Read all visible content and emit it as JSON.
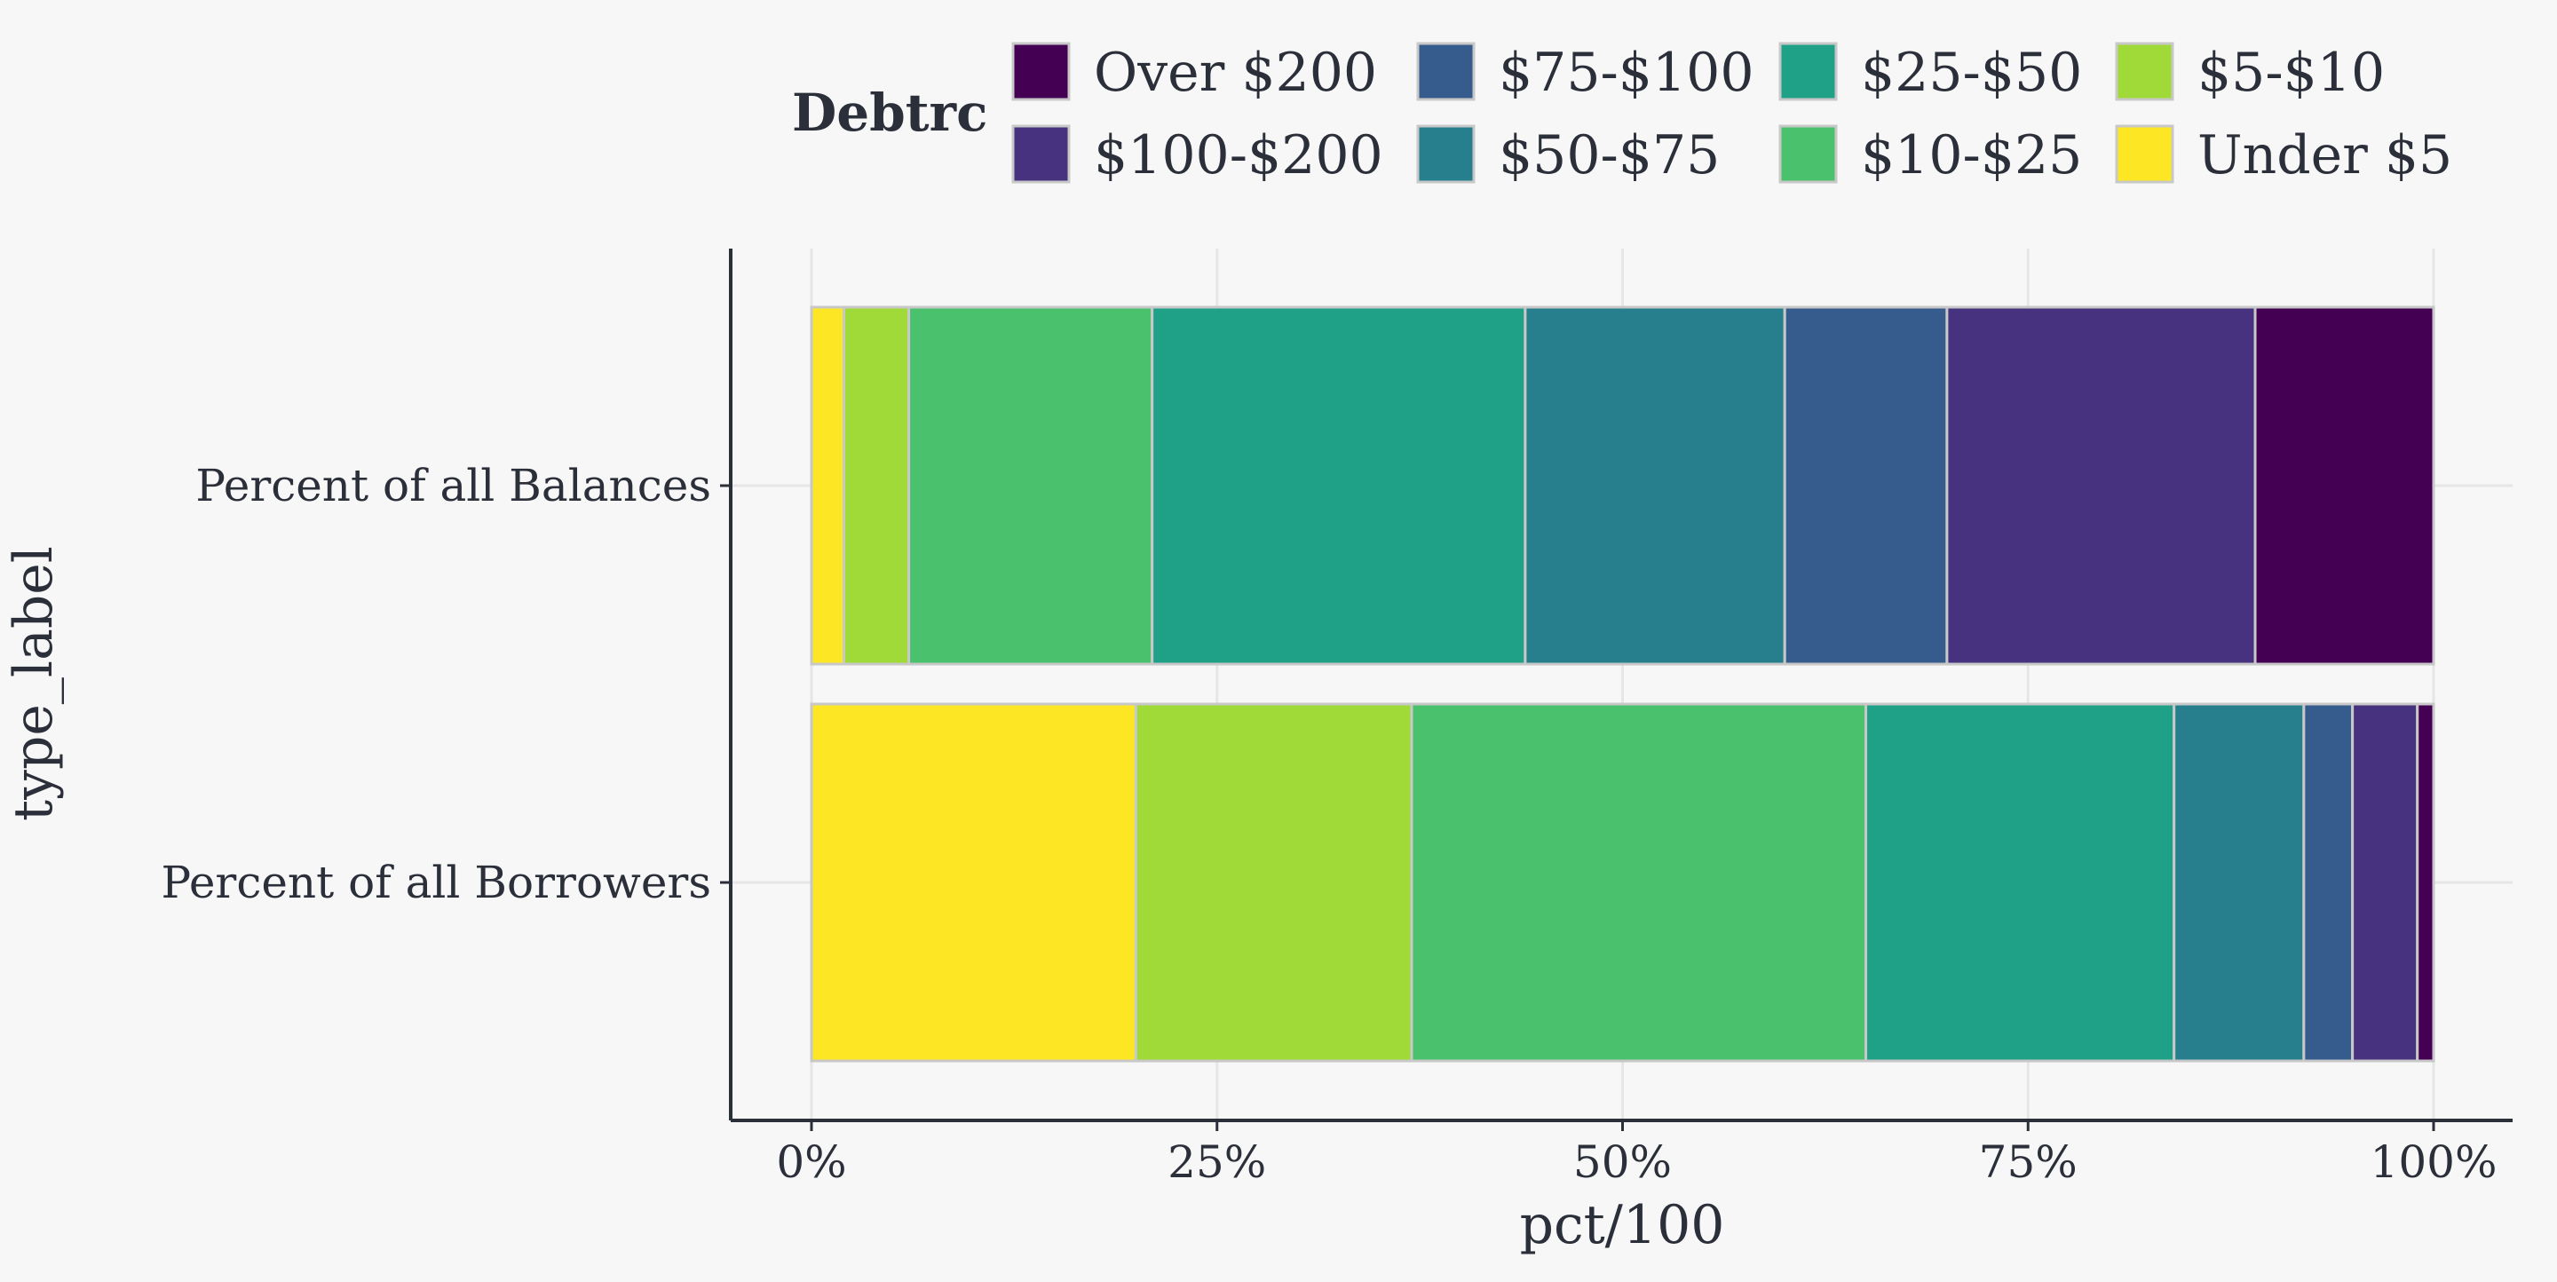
{
  "chart_data": {
    "type": "bar",
    "orientation": "horizontal",
    "stacked": true,
    "xlabel": "pct/100",
    "ylabel": "type_label",
    "xlim": [
      0,
      1
    ],
    "x_tick_labels": [
      "0%",
      "25%",
      "50%",
      "75%",
      "100%"
    ],
    "x_ticks": [
      0,
      0.25,
      0.5,
      0.75,
      1.0
    ],
    "categories": [
      "Percent of all Balances",
      "Percent of all Borrowers"
    ],
    "legend_title": "Debtrc",
    "legend_position": "top",
    "grid": true,
    "series": [
      {
        "name": "Under $5",
        "color": "#fde725",
        "values": [
          0.02,
          0.2
        ]
      },
      {
        "name": "$5-$10",
        "color": "#a0da39",
        "values": [
          0.04,
          0.17
        ]
      },
      {
        "name": "$10-$25",
        "color": "#4ac16d",
        "values": [
          0.15,
          0.28
        ]
      },
      {
        "name": "$25-$50",
        "color": "#1fa187",
        "values": [
          0.23,
          0.19
        ]
      },
      {
        "name": "$50-$75",
        "color": "#277f8e",
        "values": [
          0.16,
          0.08
        ]
      },
      {
        "name": "$75-$100",
        "color": "#365c8d",
        "values": [
          0.1,
          0.03
        ]
      },
      {
        "name": "$100-$200",
        "color": "#46327e",
        "values": [
          0.19,
          0.04
        ]
      },
      {
        "name": "Over $200",
        "color": "#440154",
        "values": [
          0.11,
          0.01
        ]
      }
    ],
    "legend_order": [
      "Over $200",
      "$100-$200",
      "$75-$100",
      "$50-$75",
      "$25-$50",
      "$10-$25",
      "$5-$10",
      "Under $5"
    ]
  }
}
